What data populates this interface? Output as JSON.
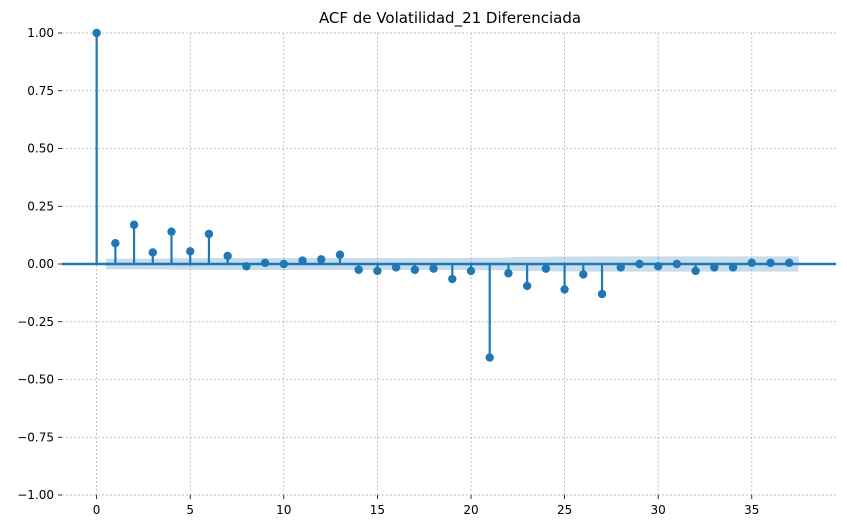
{
  "chart_data": {
    "type": "stem",
    "title": "ACF de Volatilidad_21 Diferenciada",
    "xlabel": "",
    "ylabel": "",
    "xlim": [
      -1.85,
      39.5
    ],
    "ylim": [
      -1.0,
      1.0
    ],
    "x_ticks": [
      0,
      5,
      10,
      15,
      20,
      25,
      30,
      35
    ],
    "x_tick_labels": [
      "0",
      "5",
      "10",
      "15",
      "20",
      "25",
      "30",
      "35"
    ],
    "y_ticks": [
      1.0,
      0.75,
      0.5,
      0.25,
      0.0,
      -0.25,
      -0.5,
      -0.75,
      -1.0
    ],
    "y_tick_labels": [
      "1.00",
      "0.75",
      "0.50",
      "0.25",
      "0.00",
      "−0.25",
      "−0.50",
      "−0.75",
      "−1.00"
    ],
    "grid": true,
    "colors": {
      "stem": "#1f77b4",
      "band": "#1f77b4",
      "grid": "#b0b0b0",
      "axis": "#000000"
    },
    "series": [
      {
        "name": "ACF",
        "lags": [
          0,
          1,
          2,
          3,
          4,
          5,
          6,
          7,
          8,
          9,
          10,
          11,
          12,
          13,
          14,
          15,
          16,
          17,
          18,
          19,
          20,
          21,
          22,
          23,
          24,
          25,
          26,
          27,
          28,
          29,
          30,
          31,
          32,
          33,
          34,
          35,
          36,
          37
        ],
        "values": [
          1.0,
          0.09,
          0.17,
          0.05,
          0.14,
          0.055,
          0.13,
          0.035,
          -0.01,
          0.005,
          0.0,
          0.015,
          0.02,
          0.04,
          -0.025,
          -0.03,
          -0.015,
          -0.025,
          -0.02,
          -0.065,
          -0.03,
          -0.405,
          -0.04,
          -0.095,
          -0.02,
          -0.11,
          -0.045,
          -0.13,
          -0.015,
          0.0,
          -0.01,
          0.0,
          -0.03,
          -0.015,
          -0.015,
          0.005,
          0.005,
          0.005
        ]
      }
    ],
    "confidence_band": {
      "name": "95% confidence interval",
      "lags": [
        0.5,
        1.5,
        2.5,
        3.5,
        4.5,
        5.5,
        6.5,
        7.5,
        8.5,
        9.5,
        10.5,
        11.5,
        12.5,
        13.5,
        14.5,
        15.5,
        16.5,
        17.5,
        18.5,
        19.5,
        20.5,
        21.5,
        22.5,
        23.5,
        24.5,
        25.5,
        26.5,
        27.5,
        28.5,
        29.5,
        30.5,
        31.5,
        32.5,
        33.5,
        34.5,
        35.5,
        36.5,
        37.5
      ],
      "upper": [
        0.023,
        0.023,
        0.024,
        0.024,
        0.025,
        0.025,
        0.026,
        0.026,
        0.026,
        0.026,
        0.026,
        0.026,
        0.026,
        0.026,
        0.026,
        0.026,
        0.026,
        0.026,
        0.026,
        0.026,
        0.027,
        0.027,
        0.031,
        0.031,
        0.032,
        0.032,
        0.033,
        0.033,
        0.033,
        0.033,
        0.033,
        0.033,
        0.033,
        0.033,
        0.033,
        0.033,
        0.033,
        0.033
      ],
      "lower": [
        -0.023,
        -0.023,
        -0.024,
        -0.024,
        -0.025,
        -0.025,
        -0.026,
        -0.026,
        -0.026,
        -0.026,
        -0.026,
        -0.026,
        -0.026,
        -0.026,
        -0.026,
        -0.026,
        -0.026,
        -0.026,
        -0.026,
        -0.026,
        -0.027,
        -0.027,
        -0.031,
        -0.031,
        -0.032,
        -0.032,
        -0.033,
        -0.033,
        -0.033,
        -0.033,
        -0.033,
        -0.033,
        -0.033,
        -0.033,
        -0.033,
        -0.033,
        -0.033,
        -0.033
      ]
    }
  }
}
